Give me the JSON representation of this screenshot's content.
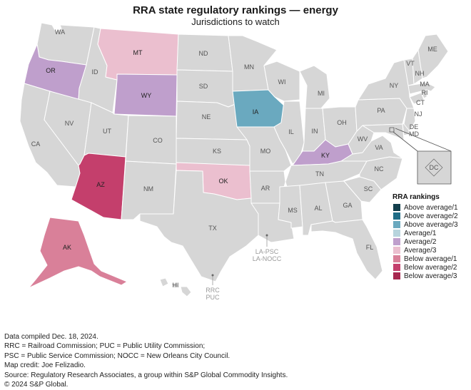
{
  "header": {
    "title": "RRA state regulatory rankings — energy",
    "subtitle": "Jurisdictions to watch"
  },
  "colors": {
    "base": "#d6d6d6",
    "border": "#ffffff",
    "above_average_1": "#133f4c",
    "above_average_2": "#1f6c86",
    "above_average_3": "#6aa9bf",
    "average_1": "#b7d4dd",
    "average_2": "#bf9fcc",
    "average_3": "#ebbfcf",
    "below_average_1": "#d98099",
    "below_average_2": "#c43f6c",
    "below_average_3": "#a7274f"
  },
  "states": {
    "WA": "WA",
    "OR": "OR",
    "CA": "CA",
    "NV": "NV",
    "ID": "ID",
    "MT": "MT",
    "WY": "WY",
    "UT": "UT",
    "AZ": "AZ",
    "CO": "CO",
    "NM": "NM",
    "ND": "ND",
    "SD": "SD",
    "NE": "NE",
    "KS": "KS",
    "OK": "OK",
    "TX": "TX",
    "MN": "MN",
    "IA": "IA",
    "MO": "MO",
    "AR": "AR",
    "LA": "LA",
    "WI": "WI",
    "IL": "IL",
    "MI": "MI",
    "IN": "IN",
    "OH": "OH",
    "KY": "KY",
    "TN": "TN",
    "MS": "MS",
    "AL": "AL",
    "GA": "GA",
    "FL": "FL",
    "SC": "SC",
    "NC": "NC",
    "VA": "VA",
    "WV": "WV",
    "PA": "PA",
    "NY": "NY",
    "VT": "VT",
    "NH": "NH",
    "ME": "ME",
    "MA": "MA",
    "RI": "RI",
    "CT": "CT",
    "NJ": "NJ",
    "DE": "DE",
    "MD": "MD",
    "DC": "DC",
    "AK": "AK",
    "HI": "HI"
  },
  "highlighted_states": {
    "OR": "Average/2",
    "WY": "Average/2",
    "KY": "Average/2",
    "MT": "Average/3",
    "OK": "Average/3",
    "IA": "Above average/3",
    "AK": "Below average/1",
    "AZ": "Below average/2"
  },
  "annotations": {
    "la_1": "LA-PSC",
    "la_2": "LA-NOCC",
    "tx_1": "RRC",
    "tx_2": "PUC"
  },
  "legend": {
    "title": "RRA rankings",
    "items": [
      {
        "label": "Above average/1",
        "color": "#133f4c"
      },
      {
        "label": "Above average/2",
        "color": "#1f6c86"
      },
      {
        "label": "Above average/3",
        "color": "#6aa9bf"
      },
      {
        "label": "Average/1",
        "color": "#b7d4dd"
      },
      {
        "label": "Average/2",
        "color": "#bf9fcc"
      },
      {
        "label": "Average/3",
        "color": "#ebbfcf"
      },
      {
        "label": "Below average/1",
        "color": "#d98099"
      },
      {
        "label": "Below average/2",
        "color": "#c43f6c"
      },
      {
        "label": "Below average/3",
        "color": "#a7274f"
      }
    ]
  },
  "footer": {
    "line1": "Data compiled Dec. 18, 2024.",
    "line2": "RRC = Railroad Commission; PUC = Public Utility Commission;",
    "line3": "PSC = Public Service Commission; NOCC = New Orleans City Council.",
    "line4": "Map credit: Joe Felizadio.",
    "line5": "Source: Regulatory Research Associates, a group within S&P Global Commodity Insights.",
    "line6": "© 2024 S&P Global."
  }
}
